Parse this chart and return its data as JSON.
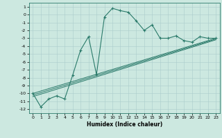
{
  "title": "",
  "xlabel": "Humidex (Indice chaleur)",
  "bg_color": "#cce8e0",
  "grid_color": "#aacccc",
  "line_color": "#2a7a6a",
  "xlim": [
    -0.5,
    23.5
  ],
  "ylim": [
    -12.5,
    1.5
  ],
  "xticks": [
    0,
    1,
    2,
    3,
    4,
    5,
    6,
    7,
    8,
    9,
    10,
    11,
    12,
    13,
    14,
    15,
    16,
    17,
    18,
    19,
    20,
    21,
    22,
    23
  ],
  "yticks": [
    1,
    0,
    -1,
    -2,
    -3,
    -4,
    -5,
    -6,
    -7,
    -8,
    -9,
    -10,
    -11,
    -12
  ],
  "curve1_x": [
    0,
    1,
    2,
    3,
    4,
    5,
    6,
    7,
    8,
    9,
    10,
    11,
    12,
    13,
    14,
    15,
    16,
    17,
    18,
    19,
    20,
    21,
    22,
    23
  ],
  "curve1_y": [
    -10,
    -11.7,
    -10.7,
    -10.3,
    -10.7,
    -7.7,
    -4.5,
    -2.8,
    -7.6,
    -0.3,
    0.8,
    0.5,
    0.3,
    -0.8,
    -2,
    -1.3,
    -3,
    -3,
    -2.7,
    -3.3,
    -3.5,
    -2.8,
    -3,
    -3
  ],
  "line1_x": [
    0,
    23
  ],
  "line1_y": [
    -10.0,
    -3.0
  ],
  "line2_x": [
    0,
    23
  ],
  "line2_y": [
    -10.2,
    -3.1
  ],
  "line3_x": [
    0,
    23
  ],
  "line3_y": [
    -10.4,
    -3.2
  ],
  "xlabel_fontsize": 5.5,
  "tick_fontsize": 4.5
}
